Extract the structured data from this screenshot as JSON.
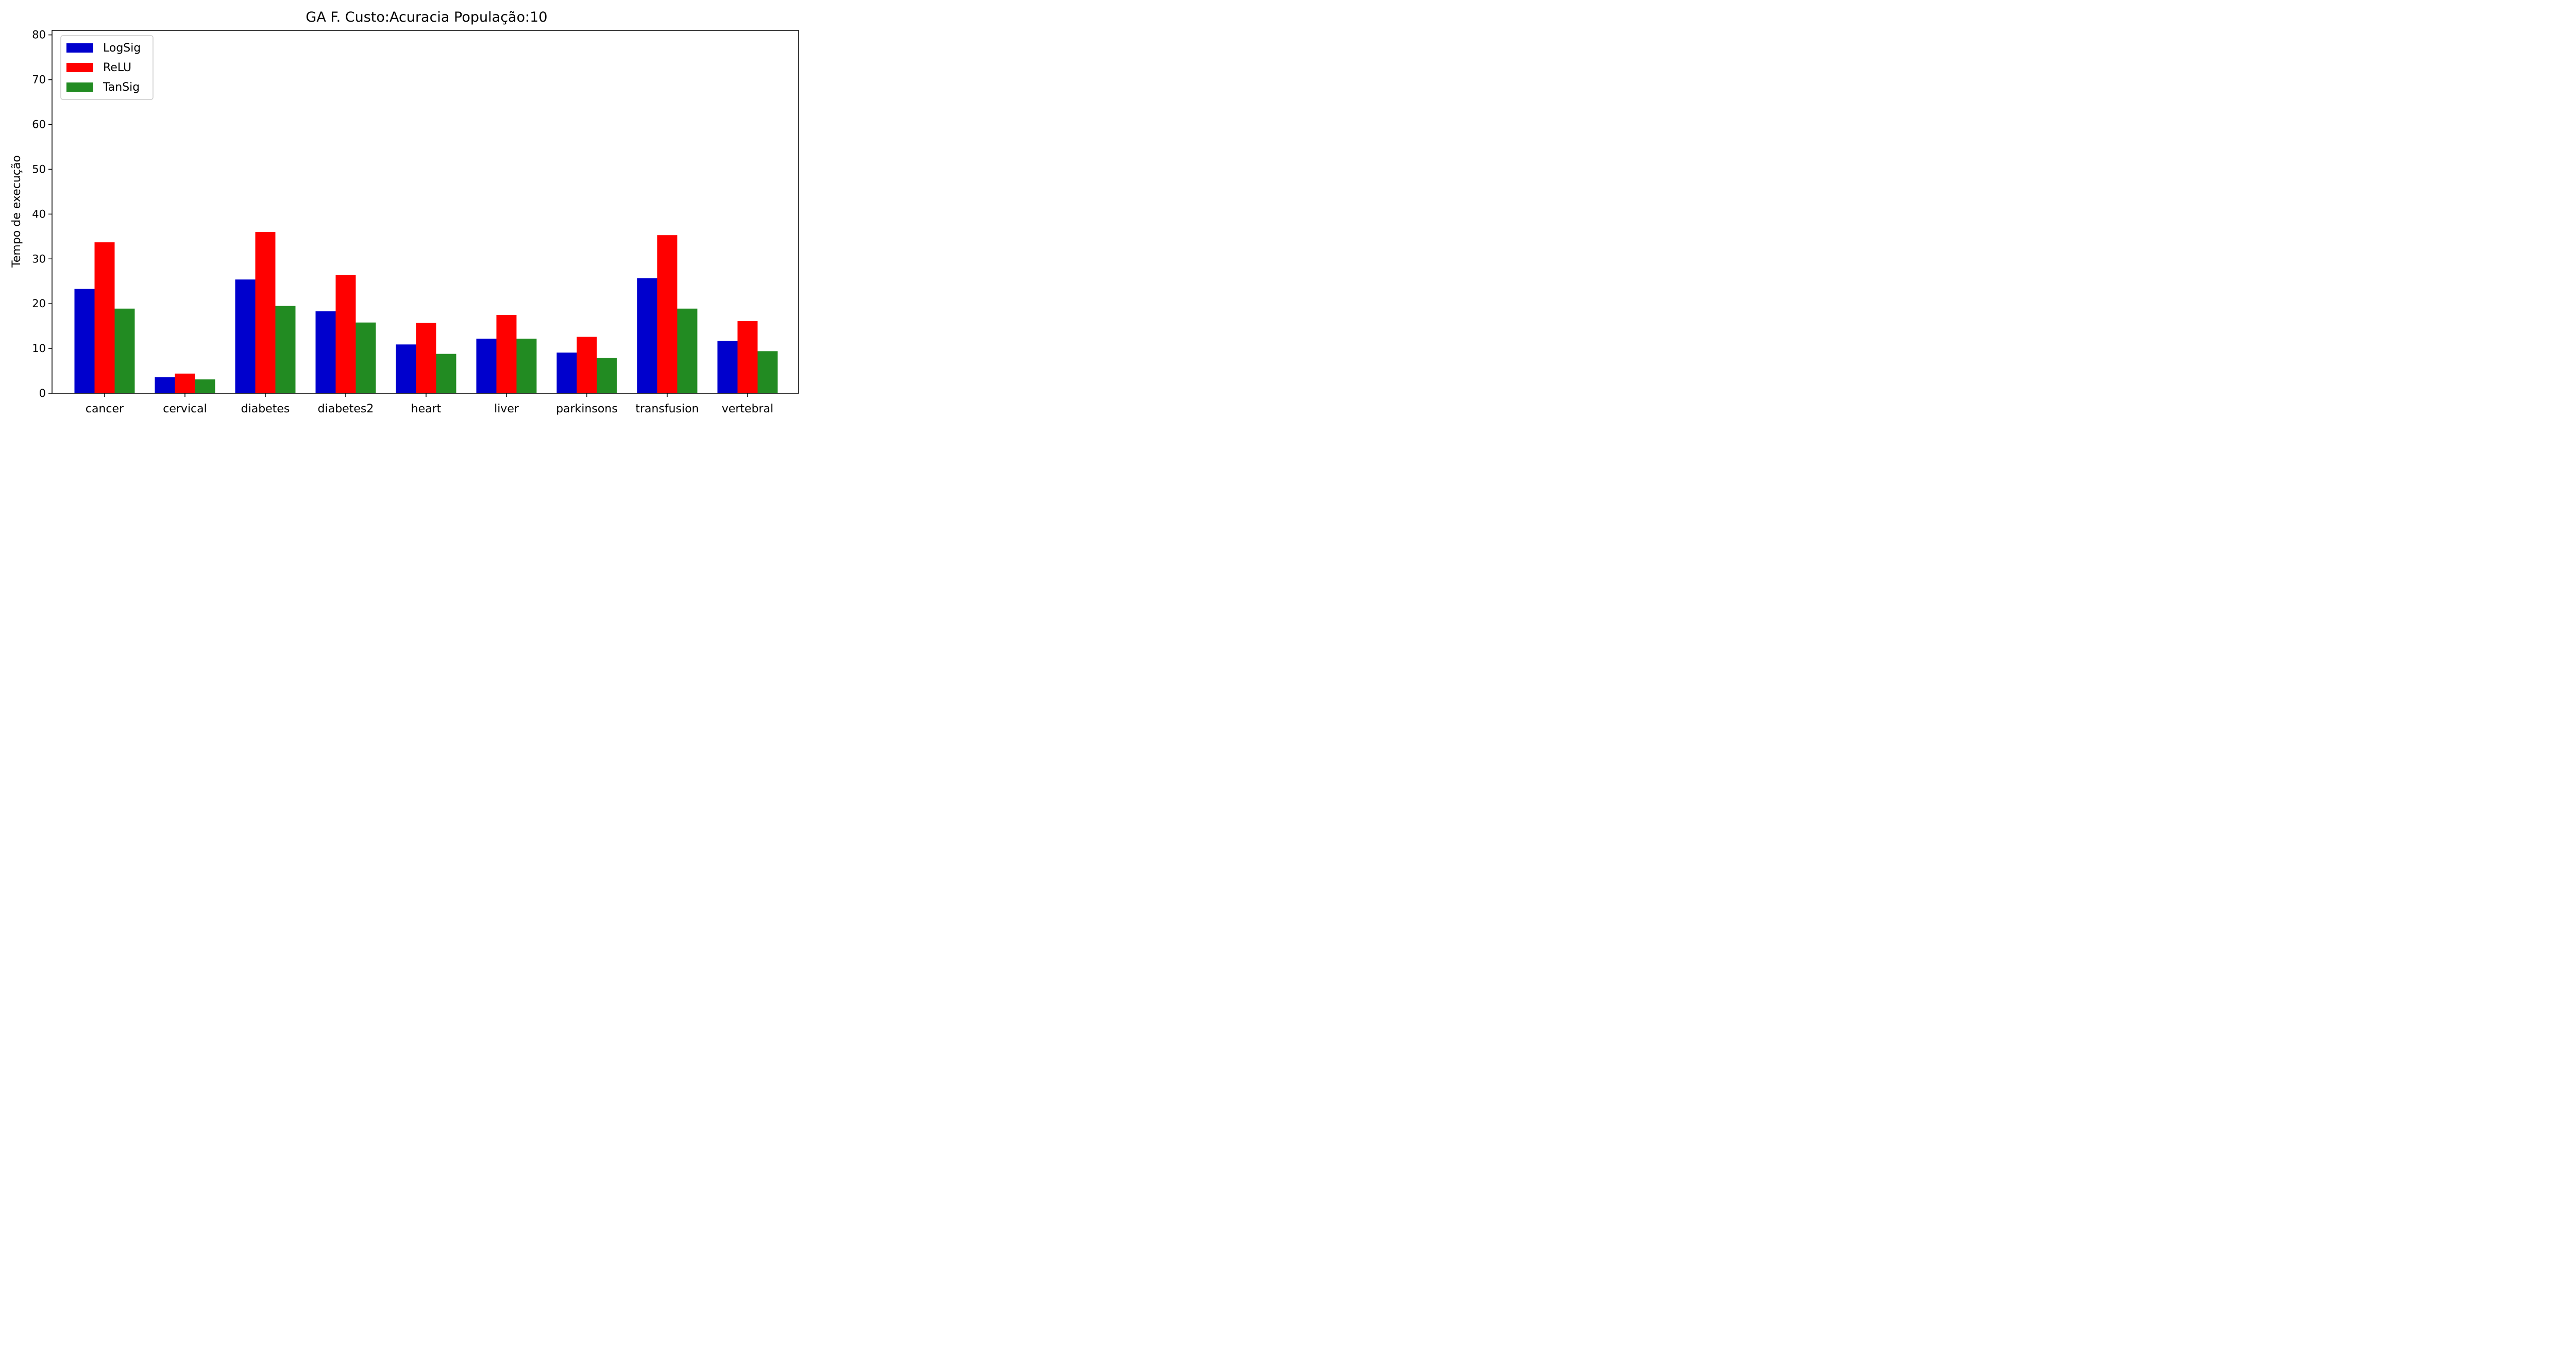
{
  "chart_data": {
    "type": "bar",
    "title": "GA F. Custo:Acuracia População:10",
    "xlabel": "",
    "ylabel": "Tempo de execução",
    "ylim": [
      0,
      81
    ],
    "yticks": [
      0,
      10,
      20,
      30,
      40,
      50,
      60,
      70,
      80
    ],
    "grid": false,
    "legend_position": "top-left",
    "categories": [
      "cancer",
      "cervical",
      "diabetes",
      "diabetes2",
      "heart",
      "liver",
      "parkinsons",
      "transfusion",
      "vertebral"
    ],
    "series": [
      {
        "name": "LogSig",
        "color": "#0000cd",
        "values": [
          23.3,
          3.6,
          25.4,
          18.3,
          10.9,
          12.2,
          9.1,
          25.7,
          11.7
        ]
      },
      {
        "name": "ReLU",
        "color": "#ff0000",
        "values": [
          33.7,
          4.4,
          36.0,
          26.4,
          15.7,
          17.5,
          12.6,
          35.3,
          16.1
        ]
      },
      {
        "name": "TanSig",
        "color": "#228b22",
        "values": [
          18.9,
          3.1,
          19.5,
          15.8,
          8.8,
          12.2,
          7.9,
          18.9,
          9.4
        ]
      }
    ]
  }
}
